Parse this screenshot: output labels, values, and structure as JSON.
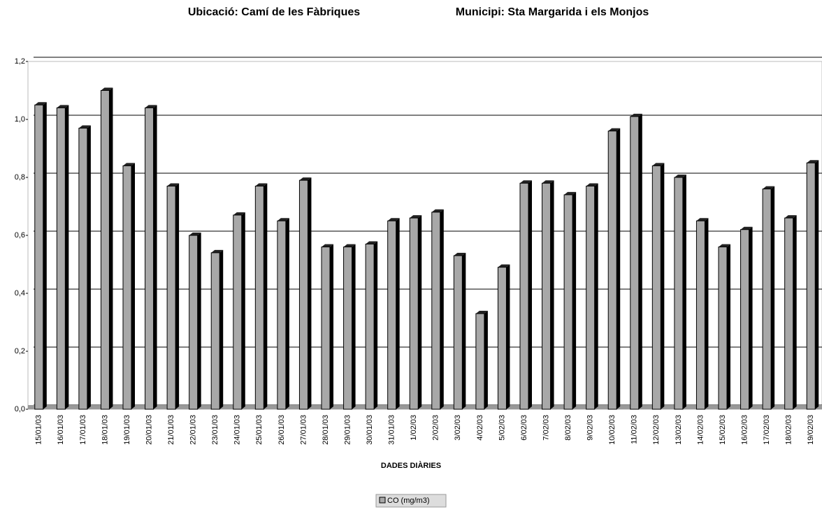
{
  "chart_data": {
    "type": "bar",
    "title": "Ubicació: Camí de les Fàbriques",
    "subtitle": "Municipi: Sta Margarida i els Monjos",
    "x_label": "DADES DIÀRIES",
    "categories": [
      "15/01/03",
      "16/01/03",
      "17/01/03",
      "18/01/03",
      "19/01/03",
      "20/01/03",
      "21/01/03",
      "22/01/03",
      "23/01/03",
      "24/01/03",
      "25/01/03",
      "26/01/03",
      "27/01/03",
      "28/01/03",
      "29/01/03",
      "30/01/03",
      "31/01/03",
      "1/02/03",
      "2/02/03",
      "3/02/03",
      "4/02/03",
      "5/02/03",
      "6/02/03",
      "7/02/03",
      "8/02/03",
      "9/02/03",
      "10/02/03",
      "11/02/03",
      "12/02/03",
      "13/02/03",
      "14/02/03",
      "15/02/03",
      "16/02/03",
      "17/02/03",
      "18/02/03",
      "19/02/03"
    ],
    "series": [
      {
        "name": "CO (mg/m3)",
        "color": "#a8a8a8",
        "values": [
          1.05,
          1.04,
          0.97,
          1.1,
          0.84,
          1.04,
          0.77,
          0.6,
          0.54,
          0.67,
          0.77,
          0.65,
          0.79,
          0.56,
          0.56,
          0.57,
          0.65,
          0.66,
          0.68,
          0.53,
          0.33,
          0.49,
          0.78,
          0.78,
          0.74,
          0.77,
          0.96,
          1.01,
          0.84,
          0.8,
          0.65,
          0.56,
          0.62,
          0.76,
          0.66,
          0.85
        ]
      }
    ],
    "ylim": [
      0,
      1.2
    ],
    "yticks": [
      {
        "value": 0,
        "label": "0,0"
      },
      {
        "value": 0.2,
        "label": "0,2"
      },
      {
        "value": 0.4,
        "label": "0,4"
      },
      {
        "value": 0.6,
        "label": "0,6"
      },
      {
        "value": 0.8,
        "label": "0,8"
      },
      {
        "value": 1.0,
        "label": "1,0"
      },
      {
        "value": 1.2,
        "label": "1,2"
      }
    ],
    "grid": true,
    "legend": "bottom"
  }
}
